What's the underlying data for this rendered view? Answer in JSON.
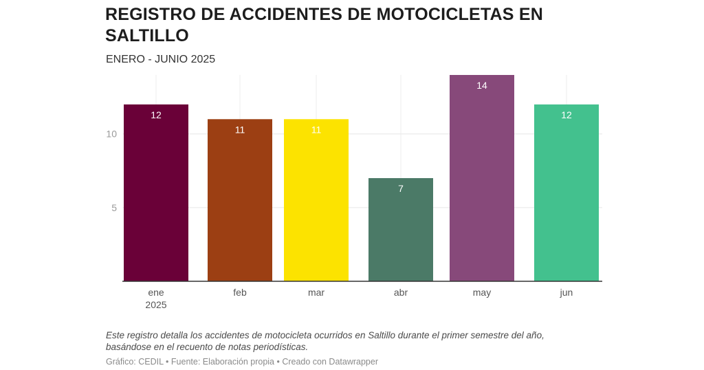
{
  "chart_data": {
    "type": "bar",
    "title": "REGISTRO DE ACCIDENTES DE MOTOCICLETAS EN SALTILLO",
    "subtitle": "ENERO - JUNIO 2025",
    "categories": [
      "ene",
      "feb",
      "mar",
      "abr",
      "may",
      "jun"
    ],
    "category_sublabels": [
      "2025",
      "",
      "",
      "",
      "",
      ""
    ],
    "values": [
      12,
      11,
      11,
      7,
      14,
      12
    ],
    "colors": [
      "#6a0138",
      "#9c3f13",
      "#fce300",
      "#4b7a67",
      "#87497a",
      "#43c18e"
    ],
    "yticks": [
      5,
      10
    ],
    "ylim": [
      0,
      14
    ],
    "grid": true,
    "xlabel": "",
    "ylabel": ""
  },
  "notes": {
    "description": "Este registro detalla los accidentes de motocicleta ocurridos en Saltillo durante el primer semestre del año, basándose en el recuento de notas periodísticas.",
    "footer": "Gráfico: CEDIL • Fuente: Elaboración propia • Creado con Datawrapper"
  }
}
